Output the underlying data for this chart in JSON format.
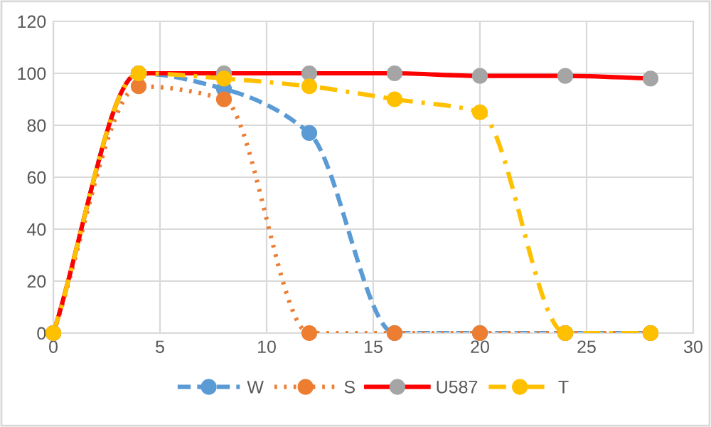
{
  "chart_data": {
    "type": "line",
    "x": [
      0,
      4,
      8,
      12,
      16,
      20,
      24,
      28
    ],
    "series": [
      {
        "name": "W",
        "color": "#5b9bd5",
        "line_style": "dashed",
        "values": [
          0,
          100,
          94,
          77,
          0,
          0,
          0,
          0
        ]
      },
      {
        "name": "S",
        "color": "#ed7d31",
        "line_style": "dotted",
        "values": [
          0,
          95,
          90,
          0,
          0,
          0,
          0,
          0
        ]
      },
      {
        "name": "U587",
        "color": "#ff0000",
        "colors": [
          "#a5a5a5",
          "#a5a5a5",
          "#a5a5a5",
          "#a5a5a5",
          "#a5a5a5",
          "#a5a5a5",
          "#a5a5a5",
          "#a5a5a5"
        ],
        "line_style": "solid",
        "values": [
          0,
          100,
          100,
          100,
          100,
          99,
          99,
          98
        ]
      },
      {
        "name": "T",
        "color": "#ffc000",
        "line_style": "dashdot",
        "values": [
          0,
          100,
          98,
          95,
          90,
          85,
          0,
          0
        ]
      }
    ],
    "xlim": [
      0,
      30
    ],
    "xticks": [
      0,
      5,
      10,
      15,
      20,
      25,
      30
    ],
    "ylim": [
      0,
      120
    ],
    "yticks": [
      0,
      20,
      40,
      60,
      80,
      100,
      120
    ],
    "grid": true,
    "legend": "bottom",
    "marker": "circle"
  }
}
